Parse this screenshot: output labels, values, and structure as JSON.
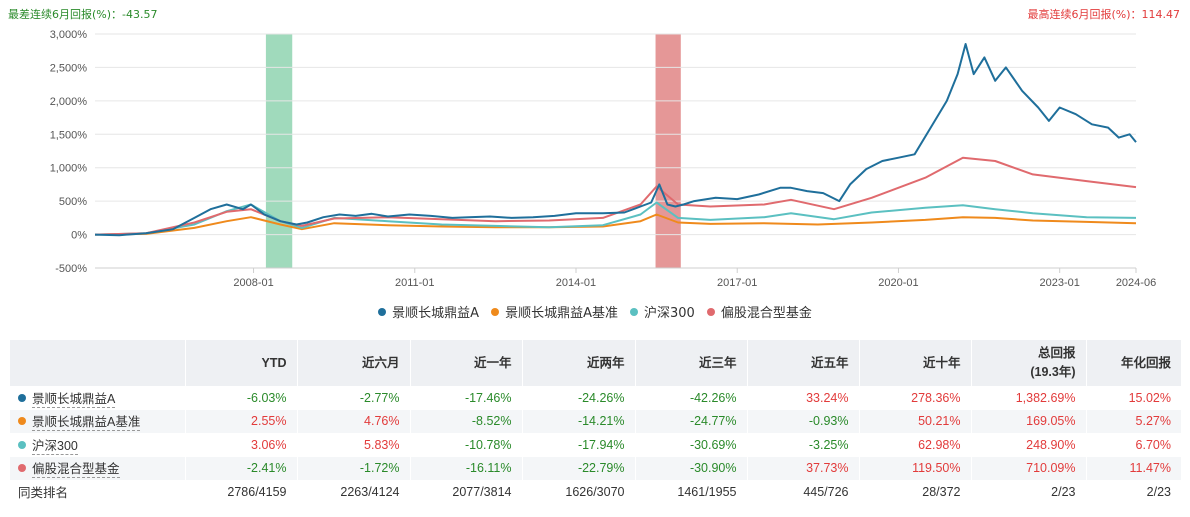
{
  "header": {
    "worst_label": "最差连续6月回报(%)：",
    "worst_value": "-43.57",
    "best_label": "最高连续6月回报(%)：",
    "best_value": "114.47"
  },
  "chart_data": {
    "type": "line",
    "x_tick_labels": [
      "2008-01",
      "2011-01",
      "2014-01",
      "2017-01",
      "2020-01",
      "2023-01",
      "2024-06"
    ],
    "y_tick_labels": [
      "3,000%",
      "2,500%",
      "2,000%",
      "1,500%",
      "1,000%",
      "500%",
      "0%",
      "-500%"
    ],
    "ylim": [
      -500,
      3000
    ],
    "xlim": [
      2005.05,
      2024.42
    ],
    "grid": true,
    "legend_position": "bottom",
    "shaded_periods": [
      {
        "from": 2008.23,
        "to": 2008.72,
        "color": "#8fd3b0"
      },
      {
        "from": 2015.48,
        "to": 2015.95,
        "color": "#e08585"
      }
    ],
    "series": [
      {
        "name": "景顺长城鼎益A",
        "color": "#1f6f9b",
        "x": [
          2005.05,
          2005.5,
          2006.0,
          2006.5,
          2006.9,
          2007.2,
          2007.5,
          2007.8,
          2007.95,
          2008.2,
          2008.5,
          2008.8,
          2009.0,
          2009.3,
          2009.6,
          2009.9,
          2010.2,
          2010.5,
          2010.9,
          2011.3,
          2011.7,
          2012.0,
          2012.4,
          2012.8,
          2013.2,
          2013.6,
          2014.0,
          2014.5,
          2014.9,
          2015.2,
          2015.4,
          2015.55,
          2015.7,
          2015.85,
          2016.0,
          2016.2,
          2016.6,
          2017.0,
          2017.4,
          2017.8,
          2018.0,
          2018.3,
          2018.6,
          2018.9,
          2019.1,
          2019.4,
          2019.7,
          2020.0,
          2020.3,
          2020.6,
          2020.9,
          2021.1,
          2021.25,
          2021.4,
          2021.6,
          2021.8,
          2022.0,
          2022.3,
          2022.6,
          2022.8,
          2023.0,
          2023.3,
          2023.6,
          2023.9,
          2024.1,
          2024.3,
          2024.42
        ],
        "values": [
          0,
          -10,
          20,
          80,
          250,
          380,
          450,
          380,
          450,
          300,
          200,
          150,
          180,
          260,
          300,
          280,
          310,
          270,
          300,
          280,
          250,
          260,
          270,
          250,
          260,
          280,
          320,
          320,
          330,
          420,
          480,
          750,
          450,
          420,
          450,
          500,
          550,
          530,
          600,
          700,
          700,
          650,
          620,
          500,
          750,
          980,
          1100,
          1150,
          1200,
          1600,
          2000,
          2400,
          2850,
          2400,
          2650,
          2300,
          2500,
          2150,
          1900,
          1700,
          1900,
          1800,
          1650,
          1600,
          1450,
          1500,
          1382.69
        ]
      },
      {
        "name": "景顺长城鼎益A基准",
        "color": "#ef8a1c",
        "x": [
          2005.05,
          2006.0,
          2006.9,
          2007.5,
          2007.95,
          2008.5,
          2008.9,
          2009.5,
          2010.5,
          2011.5,
          2012.5,
          2013.5,
          2014.5,
          2015.2,
          2015.5,
          2015.9,
          2016.5,
          2017.5,
          2018.5,
          2019.5,
          2020.5,
          2021.2,
          2021.8,
          2022.5,
          2023.5,
          2024.42
        ],
        "values": [
          0,
          10,
          100,
          200,
          260,
          150,
          80,
          170,
          140,
          120,
          110,
          110,
          120,
          200,
          300,
          180,
          160,
          170,
          150,
          180,
          220,
          260,
          250,
          210,
          190,
          169.05
        ]
      },
      {
        "name": "沪深300",
        "color": "#5bc0c1",
        "x": [
          2005.05,
          2006.0,
          2006.9,
          2007.5,
          2007.95,
          2008.5,
          2008.9,
          2009.5,
          2010.5,
          2011.5,
          2012.5,
          2013.5,
          2014.5,
          2015.2,
          2015.5,
          2015.9,
          2016.5,
          2017.5,
          2018.0,
          2018.8,
          2019.5,
          2020.5,
          2021.2,
          2021.8,
          2022.5,
          2023.5,
          2024.42
        ],
        "values": [
          0,
          20,
          150,
          350,
          450,
          200,
          100,
          250,
          200,
          150,
          130,
          110,
          140,
          300,
          480,
          250,
          220,
          260,
          320,
          230,
          330,
          400,
          440,
          380,
          320,
          260,
          248.9
        ]
      },
      {
        "name": "偏股混合型基金",
        "color": "#e06a6e",
        "x": [
          2005.05,
          2006.0,
          2006.9,
          2007.5,
          2007.95,
          2008.5,
          2008.9,
          2009.5,
          2010.5,
          2011.5,
          2012.5,
          2013.5,
          2014.5,
          2015.2,
          2015.5,
          2015.9,
          2016.5,
          2017.5,
          2018.0,
          2018.8,
          2019.5,
          2020.5,
          2021.2,
          2021.8,
          2022.5,
          2023.5,
          2024.42
        ],
        "values": [
          0,
          20,
          180,
          340,
          380,
          200,
          130,
          240,
          260,
          230,
          200,
          210,
          250,
          450,
          720,
          450,
          420,
          450,
          520,
          380,
          550,
          850,
          1150,
          1100,
          900,
          800,
          710.09
        ]
      }
    ]
  },
  "legend": [
    {
      "label": "景顺长城鼎益A",
      "color": "#1f6f9b"
    },
    {
      "label": "景顺长城鼎益A基准",
      "color": "#ef8a1c"
    },
    {
      "label": "沪深300",
      "color": "#5bc0c1"
    },
    {
      "label": "偏股混合型基金",
      "color": "#e06a6e"
    }
  ],
  "table": {
    "headers": [
      "",
      "YTD",
      "近六月",
      "近一年",
      "近两年",
      "近三年",
      "近五年",
      "近十年",
      "总回报",
      "年化回报"
    ],
    "total_sub": "(19.3年)",
    "rows": [
      {
        "name": "景顺长城鼎益A",
        "color": "#1f6f9b",
        "cells": [
          "-6.03%",
          "-2.77%",
          "-17.46%",
          "-24.26%",
          "-42.26%",
          "33.24%",
          "278.36%",
          "1,382.69%",
          "15.02%"
        ]
      },
      {
        "name": "景顺长城鼎益A基准",
        "color": "#ef8a1c",
        "cells": [
          "2.55%",
          "4.76%",
          "-8.52%",
          "-14.21%",
          "-24.77%",
          "-0.93%",
          "50.21%",
          "169.05%",
          "5.27%"
        ]
      },
      {
        "name": "沪深300",
        "color": "#5bc0c1",
        "cells": [
          "3.06%",
          "5.83%",
          "-10.78%",
          "-17.94%",
          "-30.69%",
          "-3.25%",
          "62.98%",
          "248.90%",
          "6.70%"
        ]
      },
      {
        "name": "偏股混合型基金",
        "color": "#e06a6e",
        "cells": [
          "-2.41%",
          "-1.72%",
          "-16.11%",
          "-22.79%",
          "-30.90%",
          "37.73%",
          "119.50%",
          "710.09%",
          "11.47%"
        ]
      }
    ],
    "rank_row": {
      "name": "同类排名",
      "cells": [
        "2786/4159",
        "2263/4124",
        "2077/3814",
        "1626/3070",
        "1461/1955",
        "445/726",
        "28/372",
        "2/23",
        "2/23"
      ]
    }
  }
}
